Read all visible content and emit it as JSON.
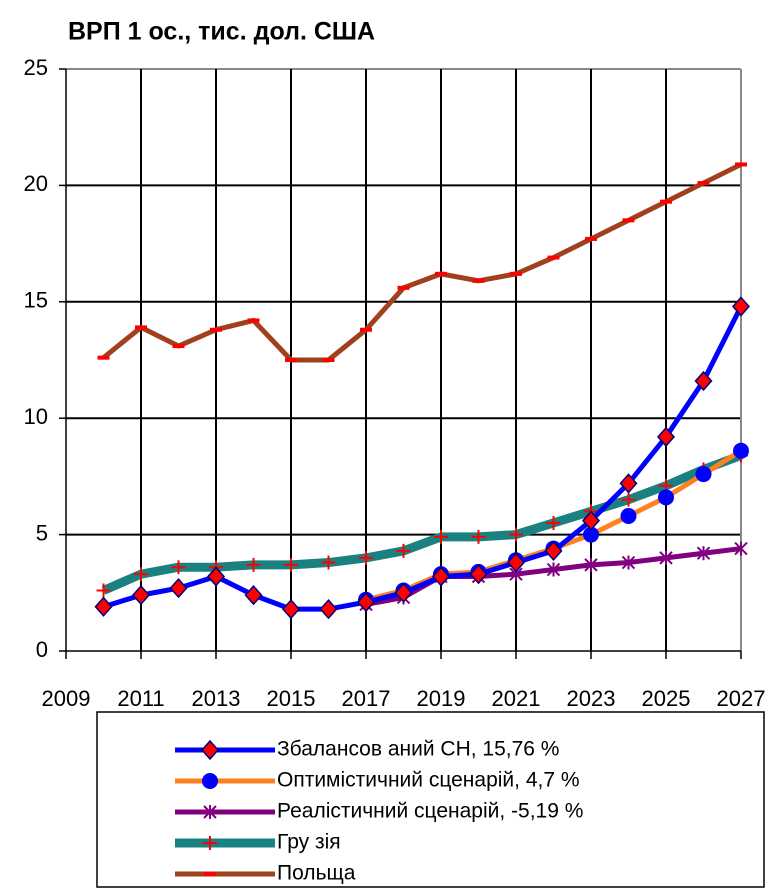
{
  "chart_data": {
    "type": "line",
    "title": "ВРП 1 ос., тис. дол. США",
    "x": [
      2010,
      2011,
      2012,
      2013,
      2014,
      2015,
      2016,
      2017,
      2018,
      2019,
      2020,
      2021,
      2022,
      2023,
      2024,
      2025,
      2026,
      2027
    ],
    "series": [
      {
        "name": "Польща",
        "color": "#a0401c",
        "marker": "dash",
        "marker_color": "#ff0000",
        "values": [
          12.6,
          13.9,
          13.1,
          13.8,
          14.2,
          12.5,
          12.5,
          13.8,
          15.6,
          16.2,
          15.9,
          16.2,
          16.9,
          17.7,
          18.5,
          19.3,
          20.1,
          20.9
        ]
      },
      {
        "name": "Гру зія",
        "color": "#1a8080",
        "marker": "plus",
        "marker_color": "#ff0000",
        "values": [
          2.6,
          3.3,
          3.6,
          3.6,
          3.7,
          3.7,
          3.8,
          4.0,
          4.3,
          4.9,
          4.9,
          5.0,
          5.5,
          6.0,
          6.5,
          7.1,
          7.8,
          8.4
        ]
      },
      {
        "name": "Реалістичний сценарій, -5,19 %",
        "color": "#800080",
        "marker": "star",
        "marker_color": "#800080",
        "values": [
          null,
          null,
          null,
          null,
          null,
          null,
          null,
          2.0,
          2.3,
          3.2,
          3.2,
          3.3,
          3.5,
          3.7,
          3.8,
          4.0,
          4.2,
          4.4
        ]
      },
      {
        "name": "Оптимістичний сценарій, 4,7 %",
        "color": "#ff8020",
        "marker": "circle",
        "marker_color": "#0000ff",
        "values": [
          null,
          null,
          null,
          null,
          null,
          null,
          null,
          2.2,
          2.6,
          3.3,
          3.4,
          3.9,
          4.4,
          5.0,
          5.8,
          6.6,
          7.6,
          8.6
        ]
      },
      {
        "name": "Збалансов аний СН, 15,76 %",
        "color": "#0000ff",
        "marker": "diamond",
        "marker_color": "#ff0000",
        "values": [
          1.9,
          2.4,
          2.7,
          3.2,
          2.4,
          1.8,
          1.8,
          2.1,
          2.5,
          3.2,
          3.3,
          3.8,
          4.3,
          5.6,
          7.2,
          9.2,
          11.6,
          14.8
        ]
      }
    ],
    "legend_order": [
      4,
      3,
      2,
      1,
      0
    ],
    "xlim": [
      2009,
      2027
    ],
    "xticks": [
      2009,
      2011,
      2013,
      2015,
      2017,
      2019,
      2021,
      2023,
      2025,
      2027
    ],
    "ylim": [
      0,
      25
    ],
    "yticks": [
      0,
      5,
      10,
      15,
      20,
      25
    ],
    "grid": true
  }
}
